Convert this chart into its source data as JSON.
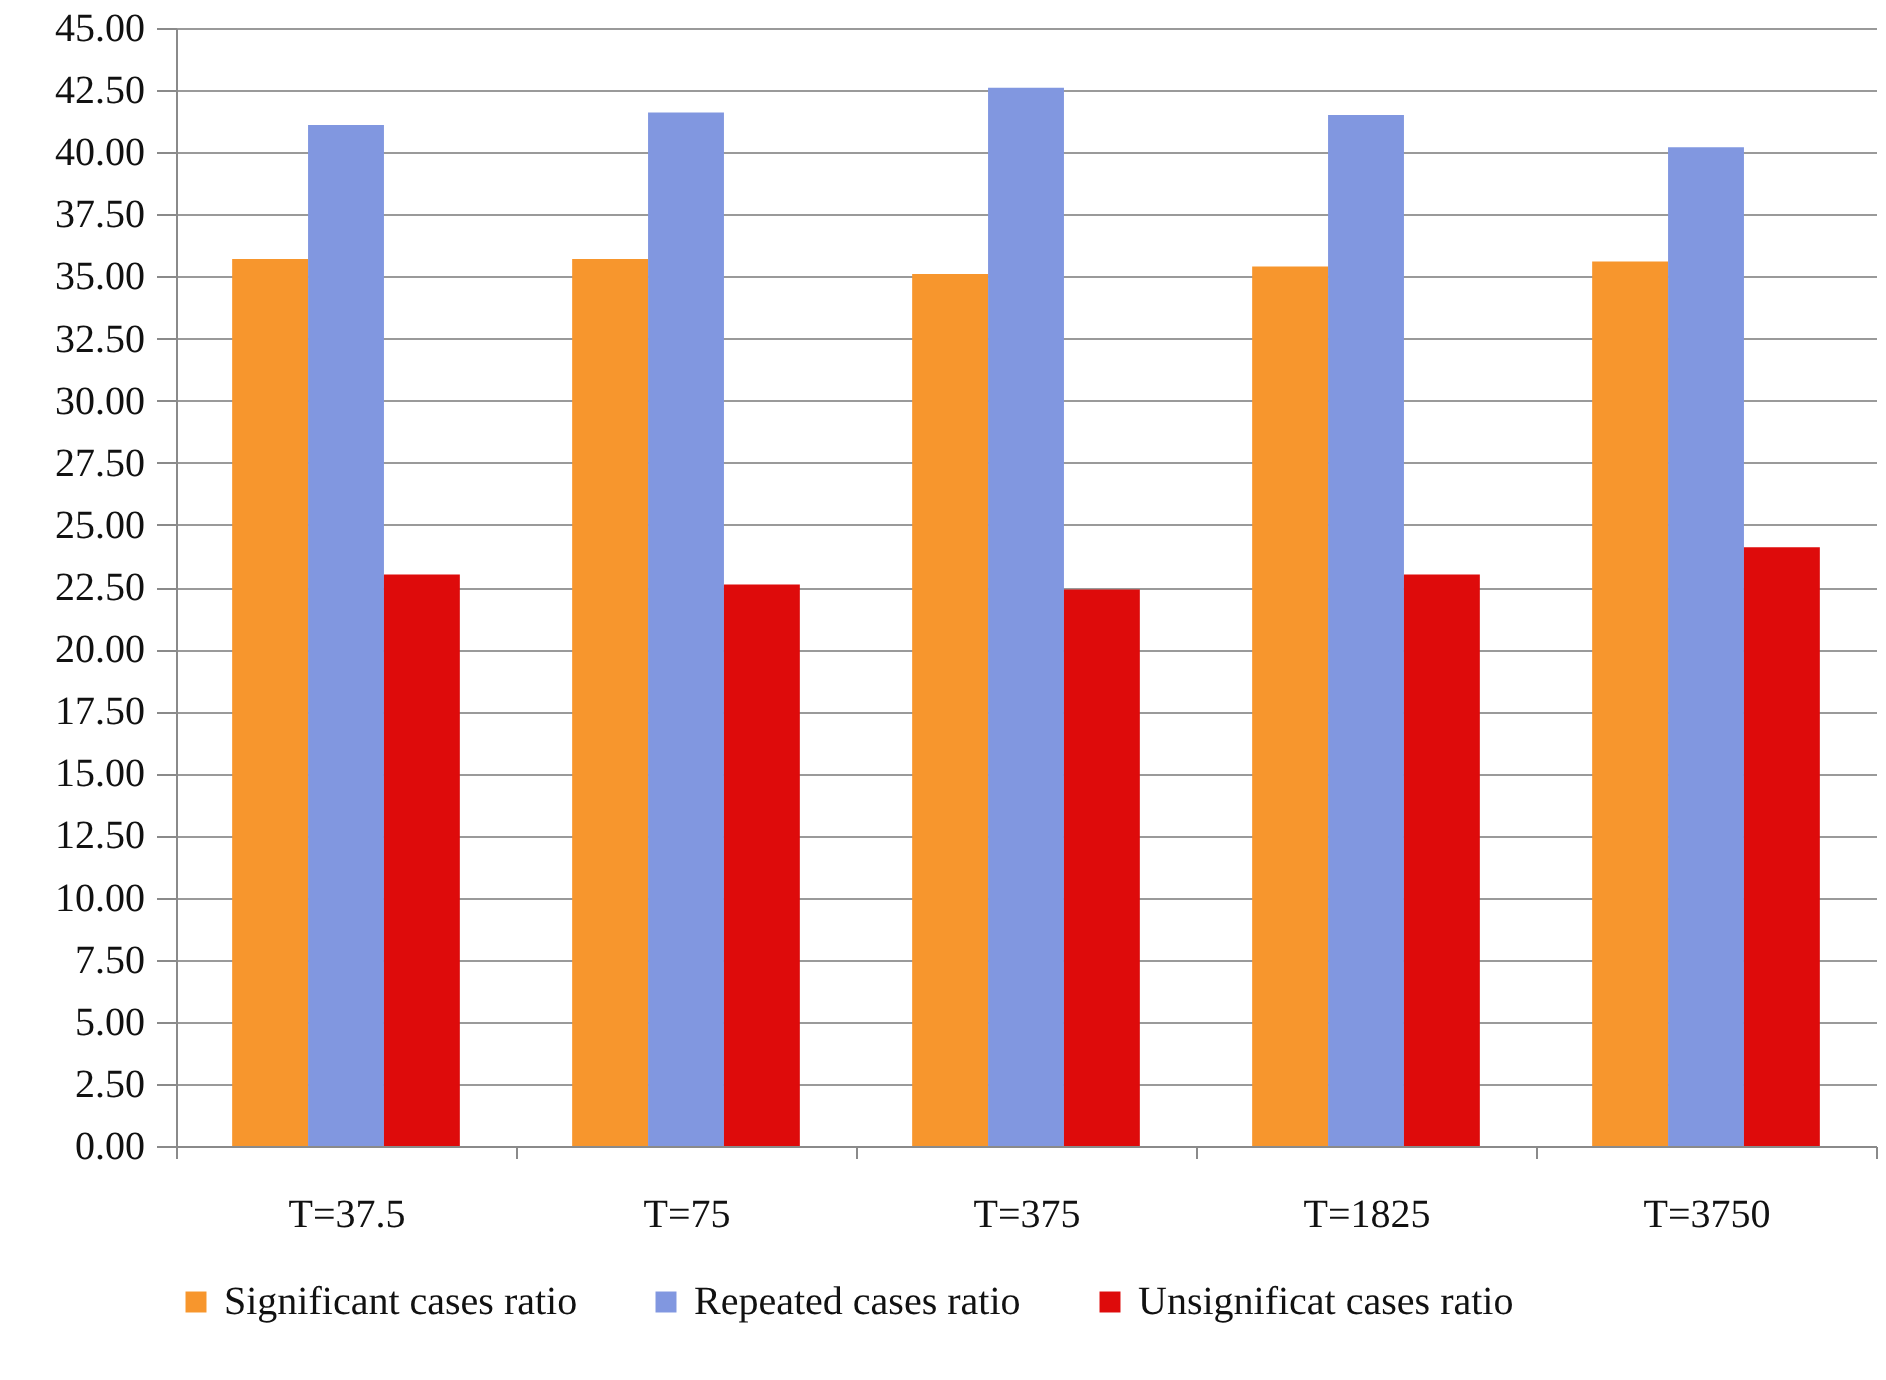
{
  "chart_data": {
    "type": "bar",
    "categories": [
      "T=37.5",
      "T=75",
      "T=375",
      "T=1825",
      "T=3750"
    ],
    "series": [
      {
        "name": "Significant cases ratio",
        "color": "#f7962d",
        "values": [
          35.7,
          35.7,
          35.1,
          35.4,
          35.6
        ]
      },
      {
        "name": "Repeated cases ratio",
        "color": "#8197e0",
        "values": [
          41.1,
          41.6,
          42.6,
          41.5,
          40.2
        ]
      },
      {
        "name": "Unsignificat cases ratio",
        "color": "#de0b0b",
        "values": [
          23.0,
          22.6,
          22.4,
          23.0,
          24.1
        ]
      }
    ],
    "ylim": [
      0,
      45
    ],
    "yticks": [
      {
        "value": 0,
        "label": "0.00"
      },
      {
        "value": 2.5,
        "label": "2.50"
      },
      {
        "value": 5,
        "label": "5.00"
      },
      {
        "value": 7.5,
        "label": "7.50"
      },
      {
        "value": 10,
        "label": "10.00"
      },
      {
        "value": 12.5,
        "label": "12.50"
      },
      {
        "value": 15,
        "label": "15.00"
      },
      {
        "value": 17.5,
        "label": "17.50"
      },
      {
        "value": 20,
        "label": "20.00"
      },
      {
        "value": 22.5,
        "label": "22.50"
      },
      {
        "value": 25,
        "label": "25.00"
      },
      {
        "value": 27.5,
        "label": "27.50"
      },
      {
        "value": 30,
        "label": "30.00"
      },
      {
        "value": 32.5,
        "label": "32.50"
      },
      {
        "value": 35,
        "label": "35.00"
      },
      {
        "value": 37.5,
        "label": "37.50"
      },
      {
        "value": 40,
        "label": "40.00"
      },
      {
        "value": 42.5,
        "label": "42.50"
      },
      {
        "value": 45,
        "label": "45.00"
      }
    ],
    "grid": "y",
    "legend": "bottom"
  }
}
